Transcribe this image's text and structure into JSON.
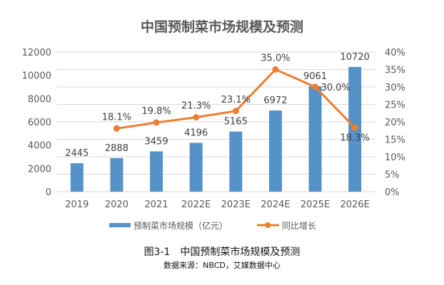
{
  "chart_data": {
    "type": "bar+line",
    "title": "中国预制菜市场规模及预测",
    "categories": [
      "2019",
      "2020",
      "2021",
      "2022E",
      "2023E",
      "2024E",
      "2025E",
      "2026E"
    ],
    "series": [
      {
        "name": "预制菜市场规模（亿元）",
        "type": "bar",
        "axis": "left",
        "color": "#5592c8",
        "values": [
          2445,
          2888,
          3459,
          4196,
          5165,
          6972,
          9061,
          10720
        ],
        "labels": [
          "2445",
          "2888",
          "3459",
          "4196",
          "5165",
          "6972",
          "9061",
          "10720"
        ]
      },
      {
        "name": "同比增长",
        "type": "line",
        "axis": "right",
        "color": "#ed7d31",
        "values": [
          null,
          18.1,
          19.8,
          21.3,
          23.1,
          35.0,
          30.0,
          18.3
        ],
        "labels": [
          "",
          "18.1%",
          "19.8%",
          "21.3%",
          "23.1%",
          "35.0%",
          "30.0%",
          "18.3%"
        ]
      }
    ],
    "left_axis": {
      "ylim": [
        0,
        12000
      ],
      "ticks": [
        "0",
        "2000",
        "4000",
        "6000",
        "8000",
        "10000",
        "12000"
      ]
    },
    "right_axis": {
      "ylim": [
        0,
        40
      ],
      "ticks": [
        "0%",
        "5%",
        "10%",
        "15%",
        "20%",
        "25%",
        "30%",
        "35%",
        "40%"
      ]
    },
    "grid": true,
    "legend": "bottom"
  },
  "caption": {
    "figure": "图3-1　中国预制菜市场规模及预测",
    "source": "数据来源：NBCD，艾媒数据中心"
  }
}
